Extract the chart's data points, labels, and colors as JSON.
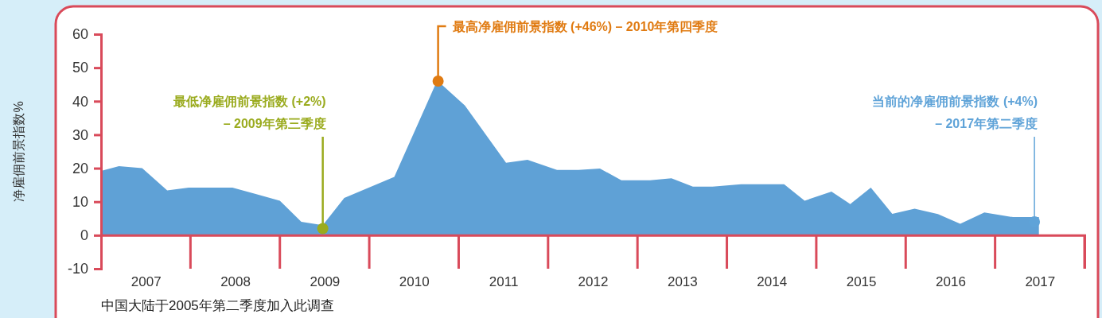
{
  "chart_data": {
    "type": "area",
    "ylabel": "净雇佣前景指数%",
    "xlim": [
      2007,
      2018
    ],
    "xticks": [
      {
        "value": 2007.5,
        "label": "2007"
      },
      {
        "value": 2008.5,
        "label": "2008"
      },
      {
        "value": 2009.5,
        "label": "2009"
      },
      {
        "value": 2010.5,
        "label": "2010"
      },
      {
        "value": 2011.5,
        "label": "2011"
      },
      {
        "value": 2012.5,
        "label": "2012"
      },
      {
        "value": 2013.5,
        "label": "2013"
      },
      {
        "value": 2014.5,
        "label": "2014"
      },
      {
        "value": 2015.5,
        "label": "2015"
      },
      {
        "value": 2016.5,
        "label": "2016"
      },
      {
        "value": 2017.5,
        "label": "2017"
      }
    ],
    "ylim": [
      -10,
      60
    ],
    "yticks": [
      -10,
      0,
      10,
      20,
      30,
      40,
      50,
      60
    ],
    "grid": false,
    "series": [
      {
        "type": "area",
        "color": "#5fa1d6",
        "x": [
          2007.0,
          2007.2,
          2007.46,
          2007.74,
          2007.98,
          2008.22,
          2008.47,
          2008.73,
          2009.0,
          2009.24,
          2009.48,
          2009.72,
          2010.28,
          2010.76,
          2011.07,
          2011.53,
          2011.77,
          2012.1,
          2012.34,
          2012.58,
          2012.82,
          2013.14,
          2013.38,
          2013.62,
          2013.84,
          2014.16,
          2014.64,
          2014.87,
          2015.17,
          2015.38,
          2015.61,
          2015.85,
          2016.1,
          2016.36,
          2016.61,
          2016.88,
          2017.2,
          2017.49
        ],
        "values": [
          19.2,
          20.6,
          20.0,
          13.4,
          14.2,
          14.2,
          14.2,
          12.3,
          10.3,
          4.0,
          3.0,
          11.1,
          17.4,
          46.2,
          38.7,
          21.6,
          22.5,
          19.5,
          19.5,
          19.9,
          16.4,
          16.4,
          17.0,
          14.5,
          14.5,
          15.2,
          15.2,
          10.3,
          13.0,
          9.3,
          14.2,
          6.4,
          7.9,
          6.3,
          3.4,
          6.8,
          5.4,
          5.4
        ]
      },
      {
        "type": "scatter",
        "color": "#e07b12",
        "x": [
          2010.77
        ],
        "values": [
          46
        ]
      },
      {
        "type": "scatter",
        "color": "#9aab1e",
        "x": [
          2009.48
        ],
        "values": [
          2
        ]
      },
      {
        "type": "scatter",
        "color": "#5fa3d8",
        "x": [
          2017.44
        ],
        "values": [
          4
        ]
      }
    ],
    "annotations": [
      {
        "text": "最高净雇佣前景指数 (+46%) – 2010年第四季度",
        "x": 2010.77,
        "y": 46
      },
      {
        "text": "最低净雇佣前景指数 (+2%) – 2009年第三季度",
        "x": 2009.48,
        "y": 2
      },
      {
        "text": "当前的净雇佣前景指数 (+4%) – 2017年第二季度",
        "x": 2017.44,
        "y": 4
      },
      "中国大陆于2005年第二季度加入此调查"
    ]
  }
}
